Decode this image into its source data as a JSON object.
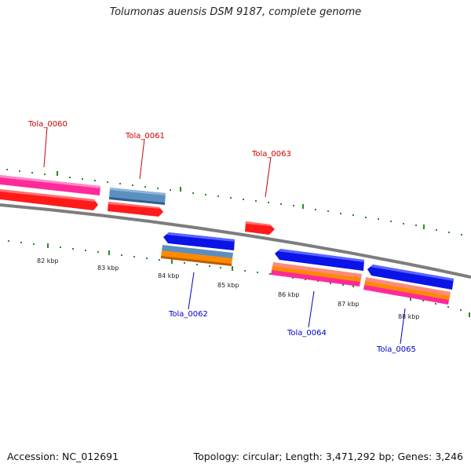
{
  "title": "Tolumonas auensis DSM 9187, complete genome",
  "accession": "Accession: NC_012691",
  "summary": "Topology: circular; Length: 3,471,292 bp; Genes: 3,246",
  "colors": {
    "forward_label": "#cc0000",
    "reverse_label": "#0000cc",
    "backbone": "#808080",
    "ticks": "#2a8a2a",
    "red": "#ff1a1a",
    "magenta": "#ff2a9a",
    "steelblue": "#5b8fc0",
    "blue": "#0a14e6",
    "orange": "#ff8a00",
    "salmon": "#ff8a7a"
  },
  "tick_labels": [
    "82 kbp",
    "83 kbp",
    "84 kbp",
    "85 kbp",
    "86 kbp",
    "87 kbp",
    "88 kbp"
  ],
  "genes": [
    {
      "name": "Tola_0060",
      "strand": "forward"
    },
    {
      "name": "Tola_0061",
      "strand": "forward"
    },
    {
      "name": "Tola_0062",
      "strand": "reverse"
    },
    {
      "name": "Tola_0063",
      "strand": "forward"
    },
    {
      "name": "Tola_0064",
      "strand": "reverse"
    },
    {
      "name": "Tola_0065",
      "strand": "reverse"
    }
  ]
}
